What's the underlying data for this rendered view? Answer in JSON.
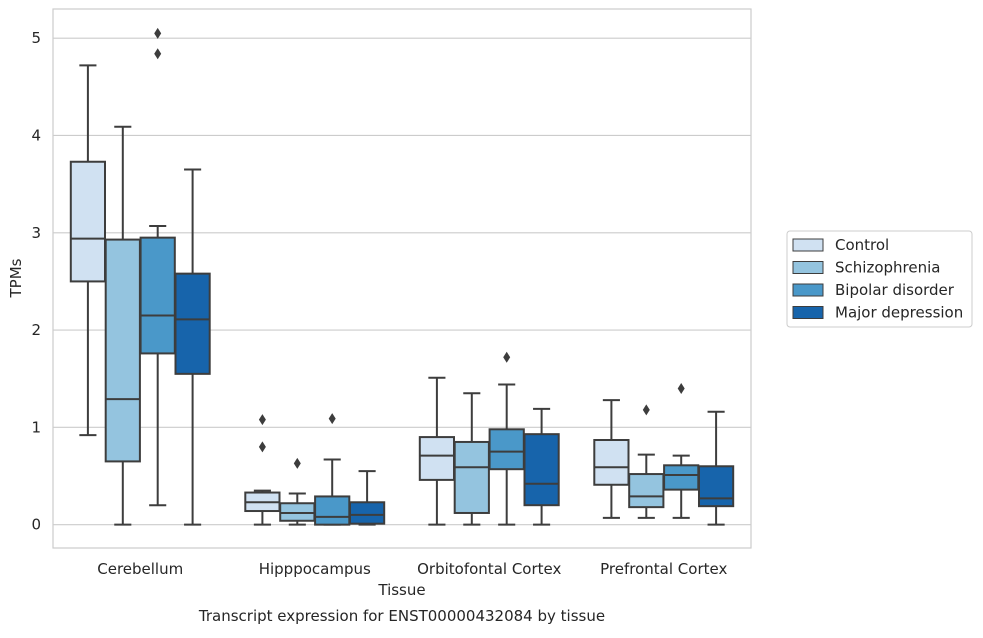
{
  "chart_data": {
    "type": "box",
    "title": "Transcript expression for ENST00000432084 by tissue",
    "xlabel": "Tissue",
    "ylabel": "TPMs",
    "ylim": [
      -0.24,
      5.3
    ],
    "yticks": [
      0,
      1,
      2,
      3,
      4,
      5
    ],
    "categories": [
      "Cerebellum",
      "Hipppocampus",
      "Orbitofontal Cortex",
      "Prefrontal Cortex"
    ],
    "grid": true,
    "legend_position": "right",
    "series": [
      {
        "name": "Control",
        "color": "#d0e1f2",
        "boxes": [
          {
            "whislo": 0.92,
            "q1": 2.5,
            "med": 2.94,
            "q3": 3.73,
            "whishi": 4.72,
            "fliers": []
          },
          {
            "whislo": 0.0,
            "q1": 0.14,
            "med": 0.23,
            "q3": 0.33,
            "whishi": 0.35,
            "fliers": [
              0.8,
              1.08
            ]
          },
          {
            "whislo": 0.0,
            "q1": 0.46,
            "med": 0.71,
            "q3": 0.9,
            "whishi": 1.51,
            "fliers": []
          },
          {
            "whislo": 0.07,
            "q1": 0.41,
            "med": 0.59,
            "q3": 0.87,
            "whishi": 1.28,
            "fliers": []
          }
        ]
      },
      {
        "name": "Schizophrenia",
        "color": "#94c4df",
        "boxes": [
          {
            "whislo": 0.0,
            "q1": 0.65,
            "med": 1.29,
            "q3": 2.93,
            "whishi": 4.09,
            "fliers": []
          },
          {
            "whislo": 0.0,
            "q1": 0.04,
            "med": 0.12,
            "q3": 0.22,
            "whishi": 0.32,
            "fliers": [
              0.63
            ]
          },
          {
            "whislo": 0.0,
            "q1": 0.12,
            "med": 0.59,
            "q3": 0.85,
            "whishi": 1.35,
            "fliers": []
          },
          {
            "whislo": 0.07,
            "q1": 0.18,
            "med": 0.29,
            "q3": 0.52,
            "whishi": 0.72,
            "fliers": [
              1.18
            ]
          }
        ]
      },
      {
        "name": "Bipolar disorder",
        "color": "#4a98c9",
        "boxes": [
          {
            "whislo": 0.2,
            "q1": 1.76,
            "med": 2.15,
            "q3": 2.95,
            "whishi": 3.07,
            "fliers": [
              4.84,
              5.05
            ]
          },
          {
            "whislo": 0.0,
            "q1": 0.0,
            "med": 0.08,
            "q3": 0.29,
            "whishi": 0.67,
            "fliers": [
              1.09
            ]
          },
          {
            "whislo": 0.0,
            "q1": 0.57,
            "med": 0.75,
            "q3": 0.98,
            "whishi": 1.44,
            "fliers": [
              1.72
            ]
          },
          {
            "whislo": 0.07,
            "q1": 0.36,
            "med": 0.51,
            "q3": 0.61,
            "whishi": 0.71,
            "fliers": [
              1.4
            ]
          }
        ]
      },
      {
        "name": "Major depression",
        "color": "#1764ab",
        "boxes": [
          {
            "whislo": 0.0,
            "q1": 1.55,
            "med": 2.11,
            "q3": 2.58,
            "whishi": 3.65,
            "fliers": []
          },
          {
            "whislo": 0.0,
            "q1": 0.01,
            "med": 0.1,
            "q3": 0.23,
            "whishi": 0.55,
            "fliers": []
          },
          {
            "whislo": 0.0,
            "q1": 0.2,
            "med": 0.42,
            "q3": 0.93,
            "whishi": 1.19,
            "fliers": []
          },
          {
            "whislo": 0.0,
            "q1": 0.19,
            "med": 0.27,
            "q3": 0.6,
            "whishi": 1.16,
            "fliers": []
          }
        ]
      }
    ]
  }
}
